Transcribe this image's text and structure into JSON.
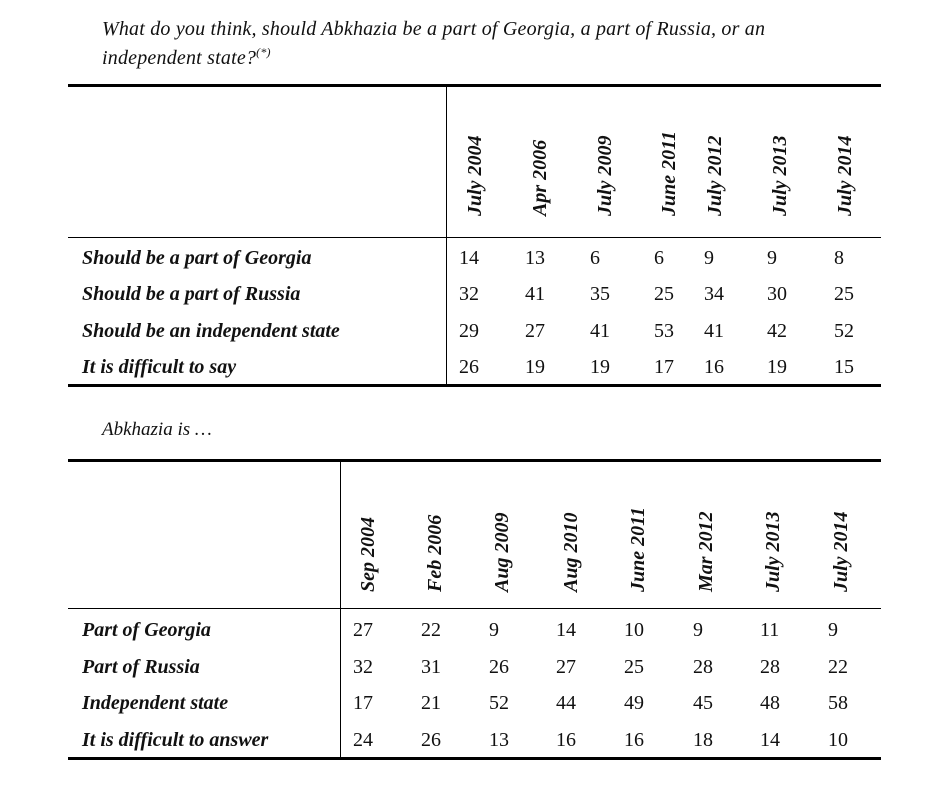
{
  "table1": {
    "question": "What do you think, should Abkhazia be a part of Georgia, a part of Russia, or an independent state?",
    "footnote_mark": "(*)",
    "columns": [
      "July 2004",
      "Apr 2006",
      "July 2009",
      "June 2011",
      "July 2012",
      "July 2013",
      "July 2014"
    ],
    "rows": [
      {
        "label": "Should be a part of Georgia",
        "values": [
          "14",
          "13",
          "6",
          "6",
          "9",
          "9",
          "8"
        ]
      },
      {
        "label": "Should be a part of Russia",
        "values": [
          "32",
          "41",
          "35",
          "25",
          "34",
          "30",
          "25"
        ]
      },
      {
        "label": "Should be an independent state",
        "values": [
          "29",
          "27",
          "41",
          "53",
          "41",
          "42",
          "52"
        ]
      },
      {
        "label": "It is difficult to say",
        "values": [
          "26",
          "19",
          "19",
          "17",
          "16",
          "19",
          "15"
        ]
      }
    ]
  },
  "table2": {
    "title": "Abkhazia is …",
    "columns": [
      "Sep 2004",
      "Feb 2006",
      "Aug 2009",
      "Aug 2010",
      "June 2011",
      "Mar 2012",
      "July 2013",
      "July 2014"
    ],
    "rows": [
      {
        "label": "Part of Georgia",
        "values": [
          "27",
          "22",
          "9",
          "14",
          "10",
          "9",
          "11",
          "9"
        ]
      },
      {
        "label": "Part of Russia",
        "values": [
          "32",
          "31",
          "26",
          "27",
          "25",
          "28",
          "28",
          "22"
        ]
      },
      {
        "label": "Independent state",
        "values": [
          "17",
          "21",
          "52",
          "44",
          "49",
          "45",
          "48",
          "58"
        ]
      },
      {
        "label": "It is difficult to answer",
        "values": [
          "24",
          "26",
          "13",
          "16",
          "16",
          "18",
          "14",
          "10"
        ]
      }
    ]
  }
}
